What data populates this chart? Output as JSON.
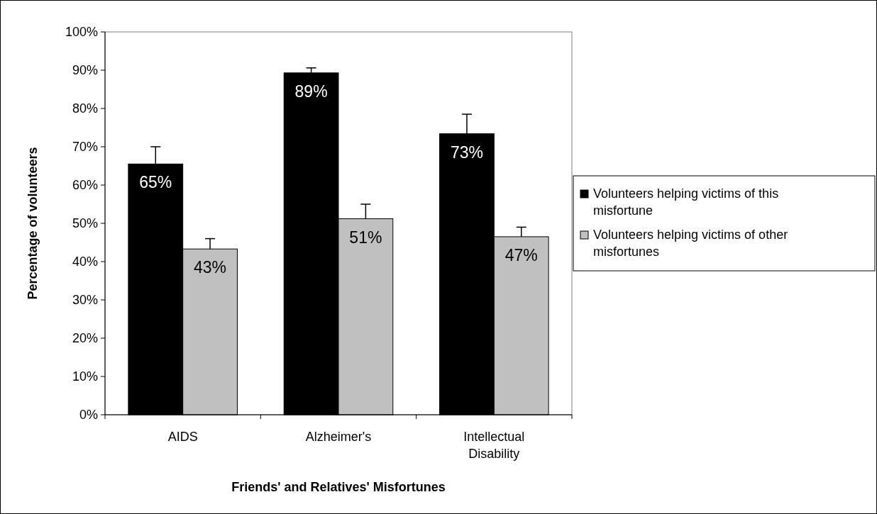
{
  "chart_data": {
    "type": "bar",
    "xlabel": "Friends' and Relatives' Misfortunes",
    "ylabel": "Percentage of volunteers",
    "categories": [
      "AIDS",
      "Alzheimer's",
      "Intellectual Disability"
    ],
    "series": [
      {
        "name": "Volunteers helping victims of this misfortune",
        "color": "#000000",
        "values": [
          65.5,
          89.3,
          73.4
        ],
        "value_labels": [
          "65%",
          "89%",
          "73%"
        ],
        "errors": [
          [
            65.5,
            70
          ],
          [
            89.3,
            90.6
          ],
          [
            73.4,
            78.5
          ]
        ]
      },
      {
        "name": "Volunteers helping victims of other misfortunes",
        "color": "#c0c0c0",
        "values": [
          43.3,
          51.2,
          46.5
        ],
        "value_labels": [
          "43%",
          "51%",
          "47%"
        ],
        "errors": [
          [
            43.3,
            46
          ],
          [
            51.2,
            55
          ],
          [
            46.5,
            49
          ]
        ]
      }
    ],
    "ylim": [
      0,
      100
    ],
    "yticks": [
      {
        "value": 0,
        "label": "0%"
      },
      {
        "value": 10,
        "label": "10%"
      },
      {
        "value": 20,
        "label": "20%"
      },
      {
        "value": 30,
        "label": "30%"
      },
      {
        "value": 40,
        "label": "40%"
      },
      {
        "value": 50,
        "label": "50%"
      },
      {
        "value": 60,
        "label": "60%"
      },
      {
        "value": 70,
        "label": "70%"
      },
      {
        "value": 80,
        "label": "80%"
      },
      {
        "value": 90,
        "label": "90%"
      },
      {
        "value": 100,
        "label": "100%"
      }
    ],
    "legend": "right",
    "grid": false
  }
}
